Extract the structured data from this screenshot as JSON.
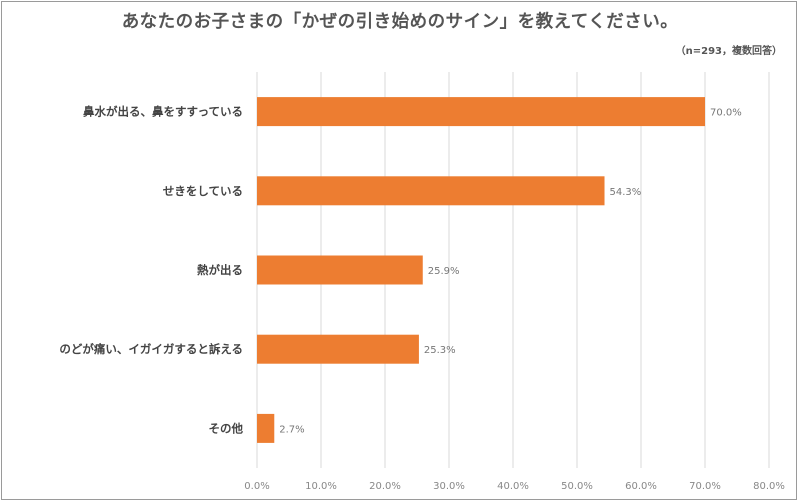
{
  "title": "あなたのお子さまの「かぜの引き始めのサイン」を教えてください。",
  "note": "（n=293，複数回答）",
  "colors": {
    "bar": "#ED7D31",
    "grid": "#d9d9d9"
  },
  "chart_data": {
    "type": "bar",
    "orientation": "horizontal",
    "categories": [
      "鼻水が出る、鼻をすすっている",
      "せきをしている",
      "熱が出る",
      "のどが痛い、イガイガすると訴える",
      "その他"
    ],
    "values": [
      70.0,
      54.3,
      25.9,
      25.3,
      2.7
    ],
    "value_labels": [
      "70.0%",
      "54.3%",
      "25.9%",
      "25.3%",
      "2.7%"
    ],
    "xlim": [
      0,
      80
    ],
    "ticks": [
      0,
      10,
      20,
      30,
      40,
      50,
      60,
      70,
      80
    ],
    "tick_labels": [
      "0.0%",
      "10.0%",
      "20.0%",
      "30.0%",
      "40.0%",
      "50.0%",
      "60.0%",
      "70.0%",
      "80.0%"
    ],
    "grid": true,
    "legend": "none"
  }
}
